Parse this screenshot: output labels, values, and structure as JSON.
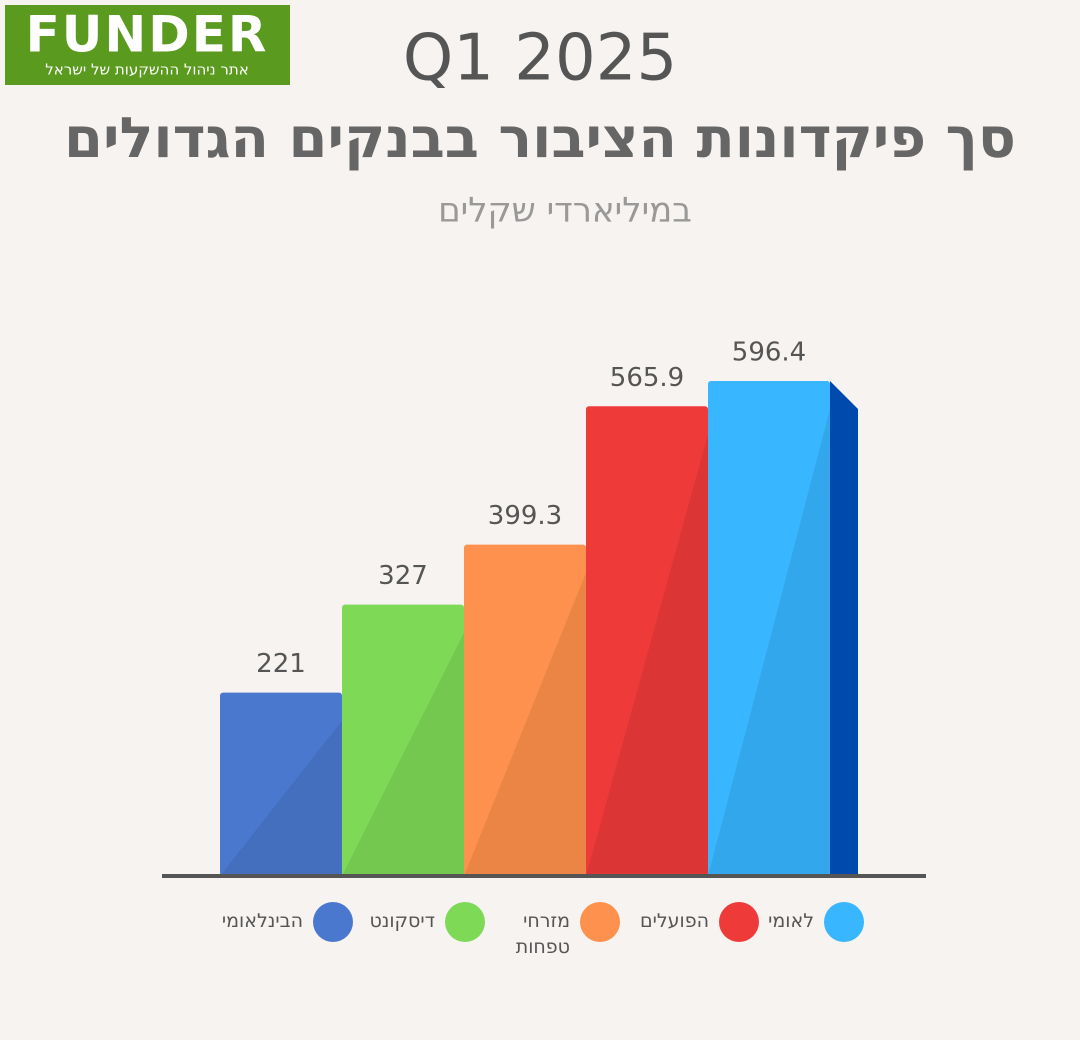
{
  "logo": {
    "name": "FUNDER",
    "tagline": "אתר ניהול ההשקעות של ישראל"
  },
  "chart_data": {
    "type": "bar",
    "period": "Q1 2025",
    "title": "סך פיקדונות הציבור בבנקים הגדולים",
    "subtitle": "במיליארדי שקלים",
    "categories": [
      "הבינלאומי",
      "דיסקונט",
      "מזרחי טפחות",
      "הפועלים",
      "לאומי"
    ],
    "values": [
      221,
      327,
      399.3,
      565.9,
      596.4
    ],
    "colors": [
      "#4a78cf",
      "#7ed957",
      "#fe914d",
      "#ef3a3a",
      "#38b6ff"
    ],
    "side_colors": [
      "#3b57d8",
      "#00bf63",
      "#ef5b16",
      "#ff3131",
      "#004aad"
    ]
  }
}
